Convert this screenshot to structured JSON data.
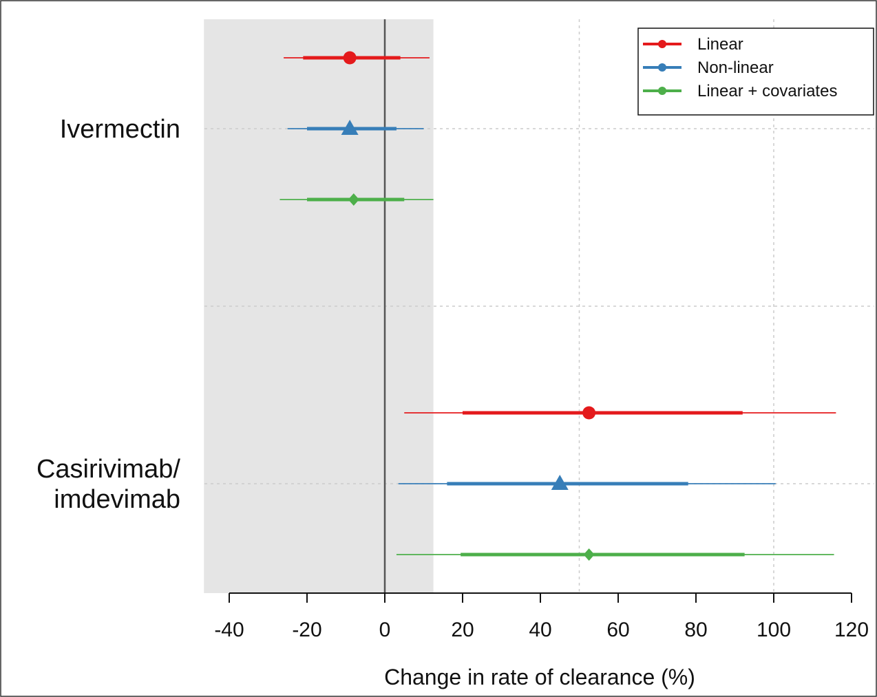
{
  "chart_data": {
    "type": "forest",
    "xlabel": "Change in rate of clearance (%)",
    "xlim": [
      -40,
      120
    ],
    "xticks": [
      -40,
      -20,
      0,
      20,
      40,
      60,
      80,
      100,
      120
    ],
    "x_gridlines": [
      50,
      100
    ],
    "shaded_region": [
      -46.5,
      12.5
    ],
    "reference_line": 0,
    "grid": "dotted",
    "legend_position": "top-right",
    "groups": [
      {
        "label_lines": [
          "Ivermectin"
        ]
      },
      {
        "label_lines": [
          "Casirivimab/",
          "imdevimab"
        ]
      }
    ],
    "series": [
      {
        "name": "Linear",
        "color": "#e41a1c",
        "marker": "circle",
        "points": [
          {
            "group": 0,
            "estimate": -9,
            "inner": [
              -21,
              4
            ],
            "outer": [
              -26,
              11.5
            ]
          },
          {
            "group": 1,
            "estimate": 52.5,
            "inner": [
              20,
              92
            ],
            "outer": [
              5,
              116
            ]
          }
        ]
      },
      {
        "name": "Non-linear",
        "color": "#377eb8",
        "marker": "triangle",
        "points": [
          {
            "group": 0,
            "estimate": -9,
            "inner": [
              -20,
              3
            ],
            "outer": [
              -25,
              10
            ]
          },
          {
            "group": 1,
            "estimate": 45,
            "inner": [
              16,
              78
            ],
            "outer": [
              3.5,
              100.5
            ]
          }
        ]
      },
      {
        "name": "Linear + covariates",
        "color": "#4daf4a",
        "marker": "diamond",
        "points": [
          {
            "group": 0,
            "estimate": -8,
            "inner": [
              -20,
              5
            ],
            "outer": [
              -27,
              12.5
            ]
          },
          {
            "group": 1,
            "estimate": 52.5,
            "inner": [
              19.5,
              92.5
            ],
            "outer": [
              3,
              115.5
            ]
          }
        ]
      }
    ]
  }
}
